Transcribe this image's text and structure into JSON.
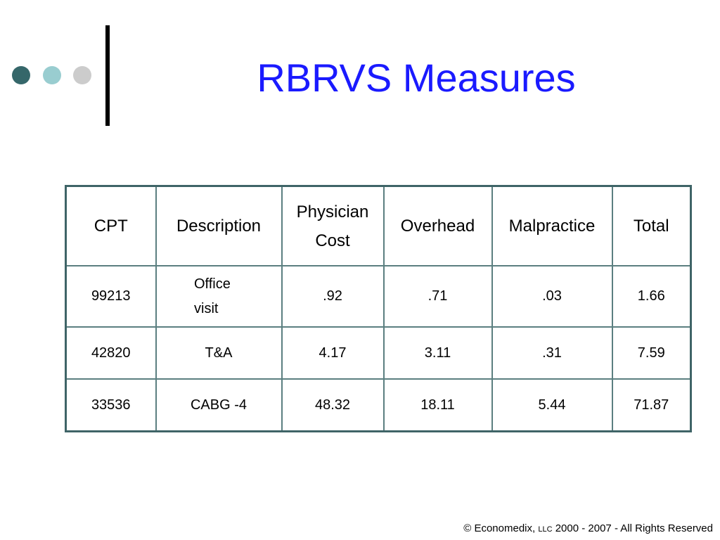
{
  "slide": {
    "title": "RBRVS Measures",
    "colors": {
      "title": "#1a1aff",
      "dot_dark": "#35676a",
      "dot_light": "#99cdd0",
      "dot_gray": "#cccccc",
      "table_border": "#3f6467"
    }
  },
  "table": {
    "headers": [
      "CPT",
      "Description",
      "Physician Cost",
      "Overhead",
      "Malpractice",
      "Total"
    ],
    "rows": [
      [
        "99213",
        "Office visit",
        ".92",
        ".71",
        ".03",
        "1.66"
      ],
      [
        "42820",
        "T&A",
        "4.17",
        "3.11",
        ".31",
        "7.59"
      ],
      [
        "33536",
        "CABG -4",
        "48.32",
        "18.11",
        "5.44",
        "71.87"
      ]
    ]
  },
  "footer": {
    "prefix": "© Economedix,",
    "small": "LLC",
    "suffix": "2000 - 2007 - All Rights Reserved"
  }
}
